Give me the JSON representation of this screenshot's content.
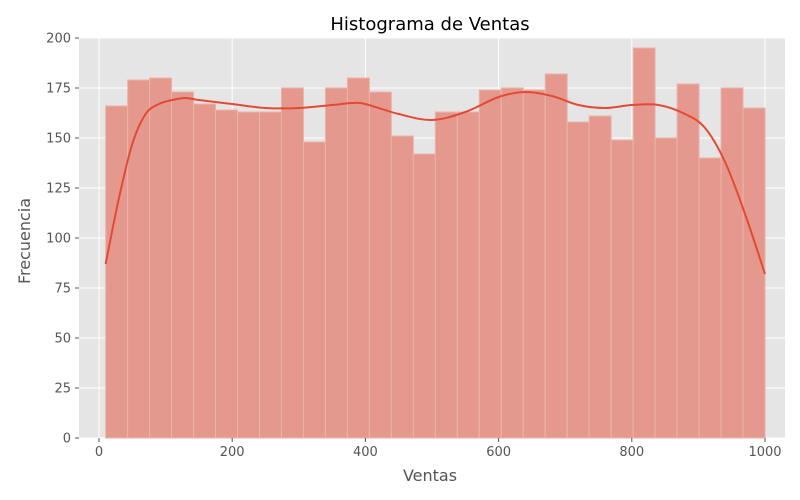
{
  "chart_data": {
    "type": "bar",
    "title": "Histograma de Ventas",
    "xlabel": "Ventas",
    "ylabel": "Frecuencia",
    "xlim": [
      -30,
      1030
    ],
    "ylim": [
      0,
      200
    ],
    "xticks": [
      0,
      200,
      400,
      600,
      800,
      1000
    ],
    "yticks": [
      0,
      25,
      50,
      75,
      100,
      125,
      150,
      175,
      200
    ],
    "grid": true,
    "bin_width": 33,
    "bin_edges": [
      10,
      43,
      76,
      109,
      142,
      175,
      208,
      241,
      274,
      307,
      340,
      373,
      406,
      439,
      472,
      505,
      538,
      571,
      604,
      637,
      670,
      703,
      736,
      769,
      802,
      835,
      868,
      901,
      934,
      967,
      1000
    ],
    "values": [
      166,
      179,
      180,
      173,
      167,
      164,
      163,
      163,
      175,
      148,
      175,
      180,
      173,
      151,
      142,
      163,
      163,
      174,
      175,
      174,
      182,
      158,
      161,
      149,
      195,
      150,
      177,
      140,
      175,
      165
    ],
    "kde": {
      "x": [
        10,
        30,
        50,
        70,
        90,
        110,
        130,
        150,
        200,
        250,
        300,
        350,
        380,
        400,
        450,
        500,
        550,
        600,
        640,
        680,
        720,
        760,
        800,
        840,
        880,
        910,
        940,
        970,
        1000
      ],
      "y": [
        87,
        120,
        147,
        162,
        167,
        169,
        170,
        169,
        167,
        165,
        165,
        166.5,
        167.5,
        167,
        162,
        159,
        163,
        170.5,
        173,
        171,
        166.5,
        165,
        166.5,
        166.5,
        162,
        155,
        138,
        112,
        82
      ]
    },
    "colors": {
      "bar_fill": "#e5998e",
      "bar_edge": "#ecb3aa",
      "kde_line": "#e24a33",
      "plot_bg": "#e5e5e5",
      "grid": "#ffffff"
    }
  }
}
